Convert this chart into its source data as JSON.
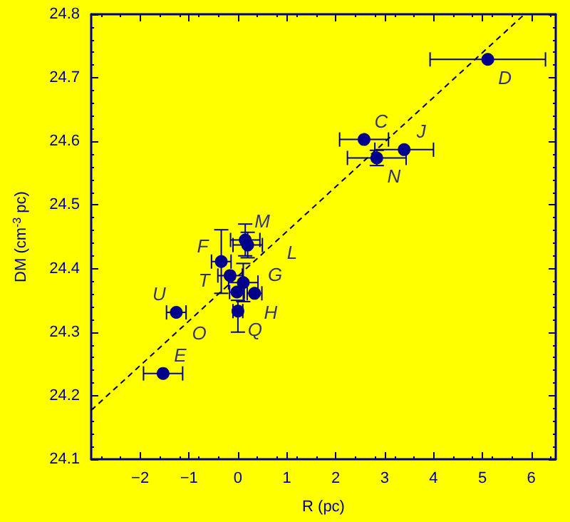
{
  "chart_data": {
    "type": "scatter",
    "xlabel": "R (pc)",
    "ylabel": "DM (cm$^{-3}$ pc)",
    "xlim": [
      -3,
      6.5
    ],
    "ylim": [
      24.1,
      24.8
    ],
    "xticks": [
      -2,
      -1,
      0,
      1,
      2,
      3,
      4,
      5,
      6
    ],
    "yticks": [
      24.1,
      24.2,
      24.3,
      24.4,
      24.5,
      24.6,
      24.7,
      24.8
    ],
    "grid": false,
    "marker": "circle",
    "series": [
      {
        "color": "#00008b",
        "x": [
          5.11,
          2.58,
          3.4,
          2.84,
          -1.53,
          -1.26,
          -0.34,
          0.15,
          0.2,
          -0.16,
          0.11,
          0.34,
          -0.02,
          0.0
        ],
        "values": [
          24.729,
          24.603,
          24.587,
          24.574,
          24.235,
          24.331,
          24.411,
          24.445,
          24.437,
          24.389,
          24.378,
          24.361,
          24.363,
          24.333
        ],
        "xerrors": [
          1.18,
          0.5,
          0.6,
          0.6,
          0.4,
          0.2,
          0.2,
          0.3,
          0.3,
          0.25,
          0.3,
          0.15,
          0.15,
          0.1
        ],
        "errors": [
          null,
          null,
          null,
          0.012,
          null,
          null,
          0.05,
          0.025,
          0.02,
          null,
          0.03,
          null,
          null,
          [
            24.3,
            24.35
          ]
        ]
      },
      {
        "type": "line",
        "color": "#000000",
        "line_style": "dashed",
        "marker": "none",
        "x": [
          -3,
          5.86
        ],
        "values": [
          24.177,
          24.8
        ]
      }
    ],
    "annotations": [
      {
        "text": "D",
        "x": 5.11,
        "y": 24.729
      },
      {
        "text": "C",
        "x": 2.58,
        "y": 24.603
      },
      {
        "text": "J",
        "x": 3.4,
        "y": 24.587
      },
      {
        "text": "N",
        "x": 2.84,
        "y": 24.574
      },
      {
        "text": "M",
        "x": 0.15,
        "y": 24.445
      },
      {
        "text": "G",
        "x": 0.2,
        "y": 24.437
      },
      {
        "text": "T",
        "x": -0.34,
        "y": 24.411
      },
      {
        "text": "F",
        "x": -0.16,
        "y": 24.389
      },
      {
        "text": "H",
        "x": 0.11,
        "y": 24.378
      },
      {
        "text": "L",
        "x": 0.34,
        "y": 24.361
      },
      {
        "text": "O",
        "x": -0.02,
        "y": 24.363
      },
      {
        "text": "Q",
        "x": 0.0,
        "y": 24.333
      },
      {
        "text": "U",
        "x": -1.26,
        "y": 24.331
      },
      {
        "text": "E",
        "x": -1.53,
        "y": 24.235
      }
    ]
  }
}
